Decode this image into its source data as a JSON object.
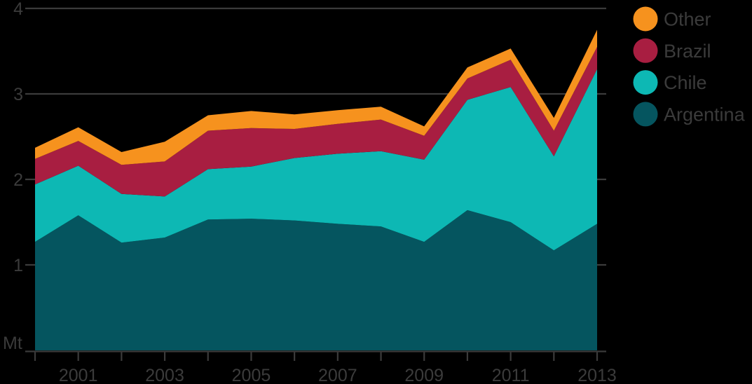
{
  "background_color": "#000000",
  "text_color": "#3B3B3B",
  "grid_color": "#3B3B3B",
  "chart_data": {
    "type": "area",
    "stacked": true,
    "title": "",
    "ylabel": "Mt",
    "xlabel": "",
    "ylim": [
      0,
      4
    ],
    "yticks": [
      1,
      2,
      3,
      4
    ],
    "grid": true,
    "legend_position": "top-right",
    "x": [
      2000,
      2001,
      2002,
      2003,
      2004,
      2005,
      2006,
      2007,
      2008,
      2009,
      2010,
      2011,
      2012,
      2013
    ],
    "x_tick_labels": [
      "2001",
      "2003",
      "2005",
      "2007",
      "2009",
      "2011",
      "2013"
    ],
    "series": [
      {
        "name": "Argentina",
        "color": "#05555F",
        "values": [
          1.27,
          1.58,
          1.26,
          1.32,
          1.53,
          1.54,
          1.52,
          1.48,
          1.45,
          1.27,
          1.64,
          1.5,
          1.17,
          1.48
        ]
      },
      {
        "name": "Chile",
        "color": "#0DB8B4",
        "values": [
          0.67,
          0.58,
          0.57,
          0.48,
          0.59,
          0.61,
          0.73,
          0.82,
          0.88,
          0.96,
          1.29,
          1.58,
          1.1,
          1.81
        ]
      },
      {
        "name": "Brazil",
        "color": "#A81E41",
        "values": [
          0.3,
          0.29,
          0.34,
          0.41,
          0.45,
          0.45,
          0.34,
          0.35,
          0.37,
          0.28,
          0.25,
          0.32,
          0.3,
          0.26
        ]
      },
      {
        "name": "Other",
        "color": "#F6921E",
        "values": [
          0.13,
          0.16,
          0.15,
          0.23,
          0.18,
          0.2,
          0.17,
          0.16,
          0.15,
          0.11,
          0.13,
          0.13,
          0.15,
          0.2
        ]
      }
    ],
    "legend": [
      "Other",
      "Brazil",
      "Chile",
      "Argentina"
    ]
  }
}
